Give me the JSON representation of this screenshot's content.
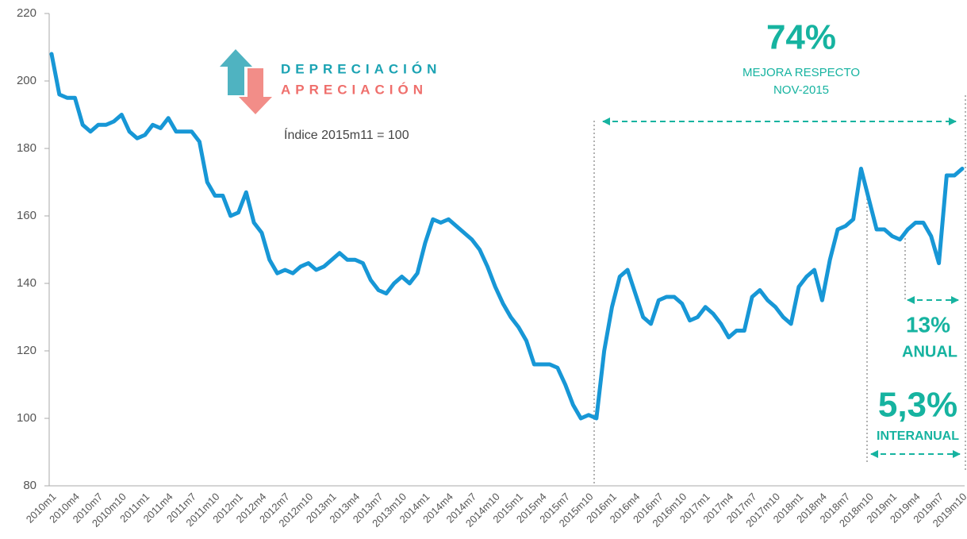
{
  "chart_data": {
    "type": "line",
    "categories": [
      "2010m1",
      null,
      null,
      "2010m4",
      null,
      null,
      "2010m7",
      null,
      null,
      "2010m10",
      null,
      null,
      "2011m1",
      null,
      null,
      "2011m4",
      null,
      null,
      "2011m7",
      null,
      null,
      "2011m10",
      null,
      null,
      "2012m1",
      null,
      null,
      "2012m4",
      null,
      null,
      "2012m7",
      null,
      null,
      "2012m10",
      null,
      null,
      "2013m1",
      null,
      null,
      "2013m4",
      null,
      null,
      "2013m7",
      null,
      null,
      "2013m10",
      null,
      null,
      "2014m1",
      null,
      null,
      "2014m4",
      null,
      null,
      "2014m7",
      null,
      null,
      "2014m10",
      null,
      null,
      "2015m1",
      null,
      null,
      "2015m4",
      null,
      null,
      "2015m7",
      null,
      null,
      "2015m10",
      null,
      null,
      "2016m1",
      null,
      null,
      "2016m4",
      null,
      null,
      "2016m7",
      null,
      null,
      "2016m10",
      null,
      null,
      "2017m1",
      null,
      null,
      "2017m4",
      null,
      null,
      "2017m7",
      null,
      null,
      "2017m10",
      null,
      null,
      "2018m1",
      null,
      null,
      "2018m4",
      null,
      null,
      "2018m7",
      null,
      null,
      "2018m10",
      null,
      null,
      "2019m1",
      null,
      null,
      "2019m4",
      null,
      null,
      "2019m7",
      null,
      null,
      "2019m10"
    ],
    "series": [
      {
        "color": "#1797d6",
        "values": [
          208,
          196,
          195,
          195,
          187,
          185,
          187,
          187,
          188,
          190,
          185,
          183,
          184,
          187,
          186,
          189,
          185,
          185,
          185,
          182,
          170,
          166,
          166,
          160,
          161,
          167,
          158,
          155,
          147,
          143,
          144,
          143,
          145,
          146,
          144,
          145,
          147,
          149,
          147,
          147,
          146,
          141,
          138,
          137,
          140,
          142,
          140,
          143,
          152,
          159,
          158,
          159,
          157,
          155,
          153,
          150,
          145,
          139,
          134,
          130,
          127,
          123,
          116,
          116,
          116,
          115,
          110,
          104,
          100,
          101,
          100,
          120,
          133,
          142,
          144,
          137,
          130,
          128,
          135,
          136,
          136,
          134,
          129,
          130,
          133,
          131,
          128,
          124,
          126,
          126,
          136,
          138,
          135,
          133,
          130,
          128,
          139,
          142,
          144,
          135,
          147,
          156,
          157,
          159,
          174,
          165,
          156,
          156,
          154,
          153,
          156,
          158,
          158,
          154,
          146,
          172,
          172,
          174
        ]
      }
    ],
    "ylim": [
      80,
      220
    ],
    "yticks": [
      80,
      100,
      120,
      140,
      160,
      180,
      200,
      220
    ],
    "legend_labels": [
      "DEPRECIACIÓN",
      "APRECIACIÓN"
    ],
    "subtitle": "Índice 2015m11 = 100",
    "annotations": [
      "74%",
      "MEJORA RESPECTO",
      "NOV-2015",
      "13%",
      "ANUAL",
      "5,3%",
      "INTERANUAL"
    ]
  }
}
